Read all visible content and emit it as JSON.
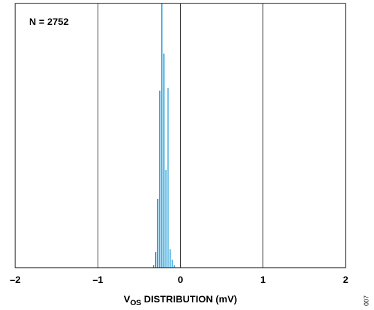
{
  "chart_data": {
    "type": "bar",
    "title": "",
    "xlabel": {
      "main": "V",
      "subscript": "OS",
      "rest": " DISTRIBUTION (mV)"
    },
    "ylabel": "",
    "xlim": [
      -2,
      2
    ],
    "ylim": [
      0,
      100
    ],
    "grid": "vertical",
    "x_ticks": [
      -2,
      -1,
      0,
      1,
      2
    ],
    "x_tick_labels": [
      "–2",
      "–1",
      "0",
      "1",
      "2"
    ],
    "bin_width": 0.025,
    "bars": [
      {
        "x": -0.325,
        "value": 1
      },
      {
        "x": -0.3,
        "value": 6
      },
      {
        "x": -0.275,
        "value": 26
      },
      {
        "x": -0.25,
        "value": 67
      },
      {
        "x": -0.225,
        "value": 100
      },
      {
        "x": -0.2,
        "value": 81
      },
      {
        "x": -0.175,
        "value": 37
      },
      {
        "x": -0.15,
        "value": 68
      },
      {
        "x": -0.125,
        "value": 7
      },
      {
        "x": -0.1,
        "value": 3
      },
      {
        "x": -0.075,
        "value": 1
      }
    ],
    "bar_color": "#1a9ad6",
    "annotation": "N = 2752"
  },
  "figure_id": "007"
}
